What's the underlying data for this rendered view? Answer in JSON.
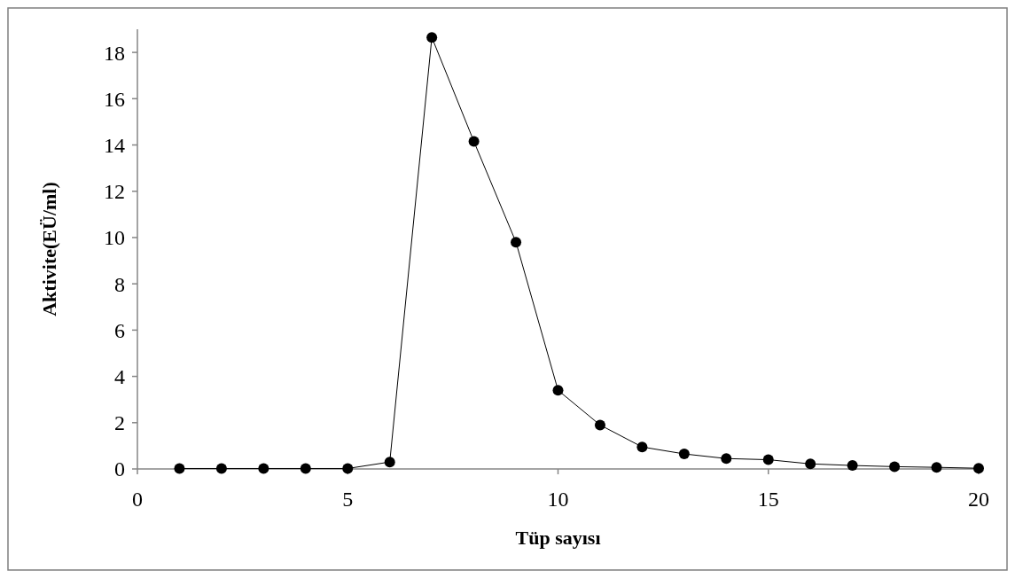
{
  "chart_data": {
    "type": "line",
    "xlabel": "Tüp sayısı",
    "ylabel": "Aktivite(EÜ/ml)",
    "x": [
      1,
      2,
      3,
      4,
      5,
      6,
      7,
      8,
      9,
      10,
      11,
      12,
      13,
      14,
      15,
      16,
      17,
      18,
      19,
      20
    ],
    "series": [
      {
        "color": "#000000",
        "values": [
          0.02,
          0.02,
          0.02,
          0.02,
          0.02,
          0.3,
          18.65,
          14.15,
          9.8,
          3.4,
          1.9,
          0.95,
          0.65,
          0.45,
          0.4,
          0.22,
          0.15,
          0.1,
          0.07,
          0.03
        ]
      }
    ],
    "xlim": [
      0,
      20
    ],
    "xticks": [
      0,
      5,
      10,
      15,
      20
    ],
    "ylim": [
      0,
      19
    ],
    "yticks": [
      0,
      2,
      4,
      6,
      8,
      10,
      12,
      14,
      16,
      18
    ],
    "grid": false,
    "marker": "circle",
    "line_style": "solid"
  }
}
